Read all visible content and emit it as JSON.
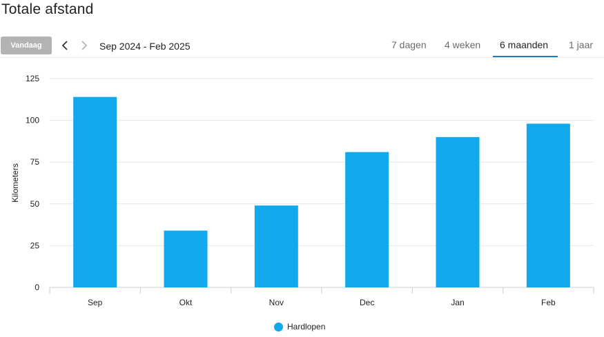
{
  "page": {
    "title": "Totale afstand"
  },
  "toolbar": {
    "today_label": "Vandaag",
    "prev_icon": "chevron-left-icon",
    "next_icon": "chevron-right-icon",
    "range": "Sep 2024 - Feb 2025"
  },
  "tabs": [
    {
      "label": "7 dagen",
      "active": false
    },
    {
      "label": "4 weken",
      "active": false
    },
    {
      "label": "6 maanden",
      "active": true
    },
    {
      "label": "1 jaar",
      "active": false
    }
  ],
  "colors": {
    "bar": "#12a8ec",
    "tab_accent": "#1a7cc9",
    "today_button": "#b3b3b3",
    "grid": "#e6e6e6"
  },
  "chart_data": {
    "type": "bar",
    "categories": [
      "Sep",
      "Okt",
      "Nov",
      "Dec",
      "Jan",
      "Feb"
    ],
    "series": [
      {
        "name": "Hardlopen",
        "values": [
          114,
          34,
          49,
          81,
          90,
          98
        ],
        "color": "#12a8ec"
      }
    ],
    "ylabel": "Kilometers",
    "ylim": [
      0,
      125
    ],
    "yticks": [
      0,
      25,
      50,
      75,
      100,
      125
    ],
    "grid": true,
    "legend": "bottom-center"
  }
}
